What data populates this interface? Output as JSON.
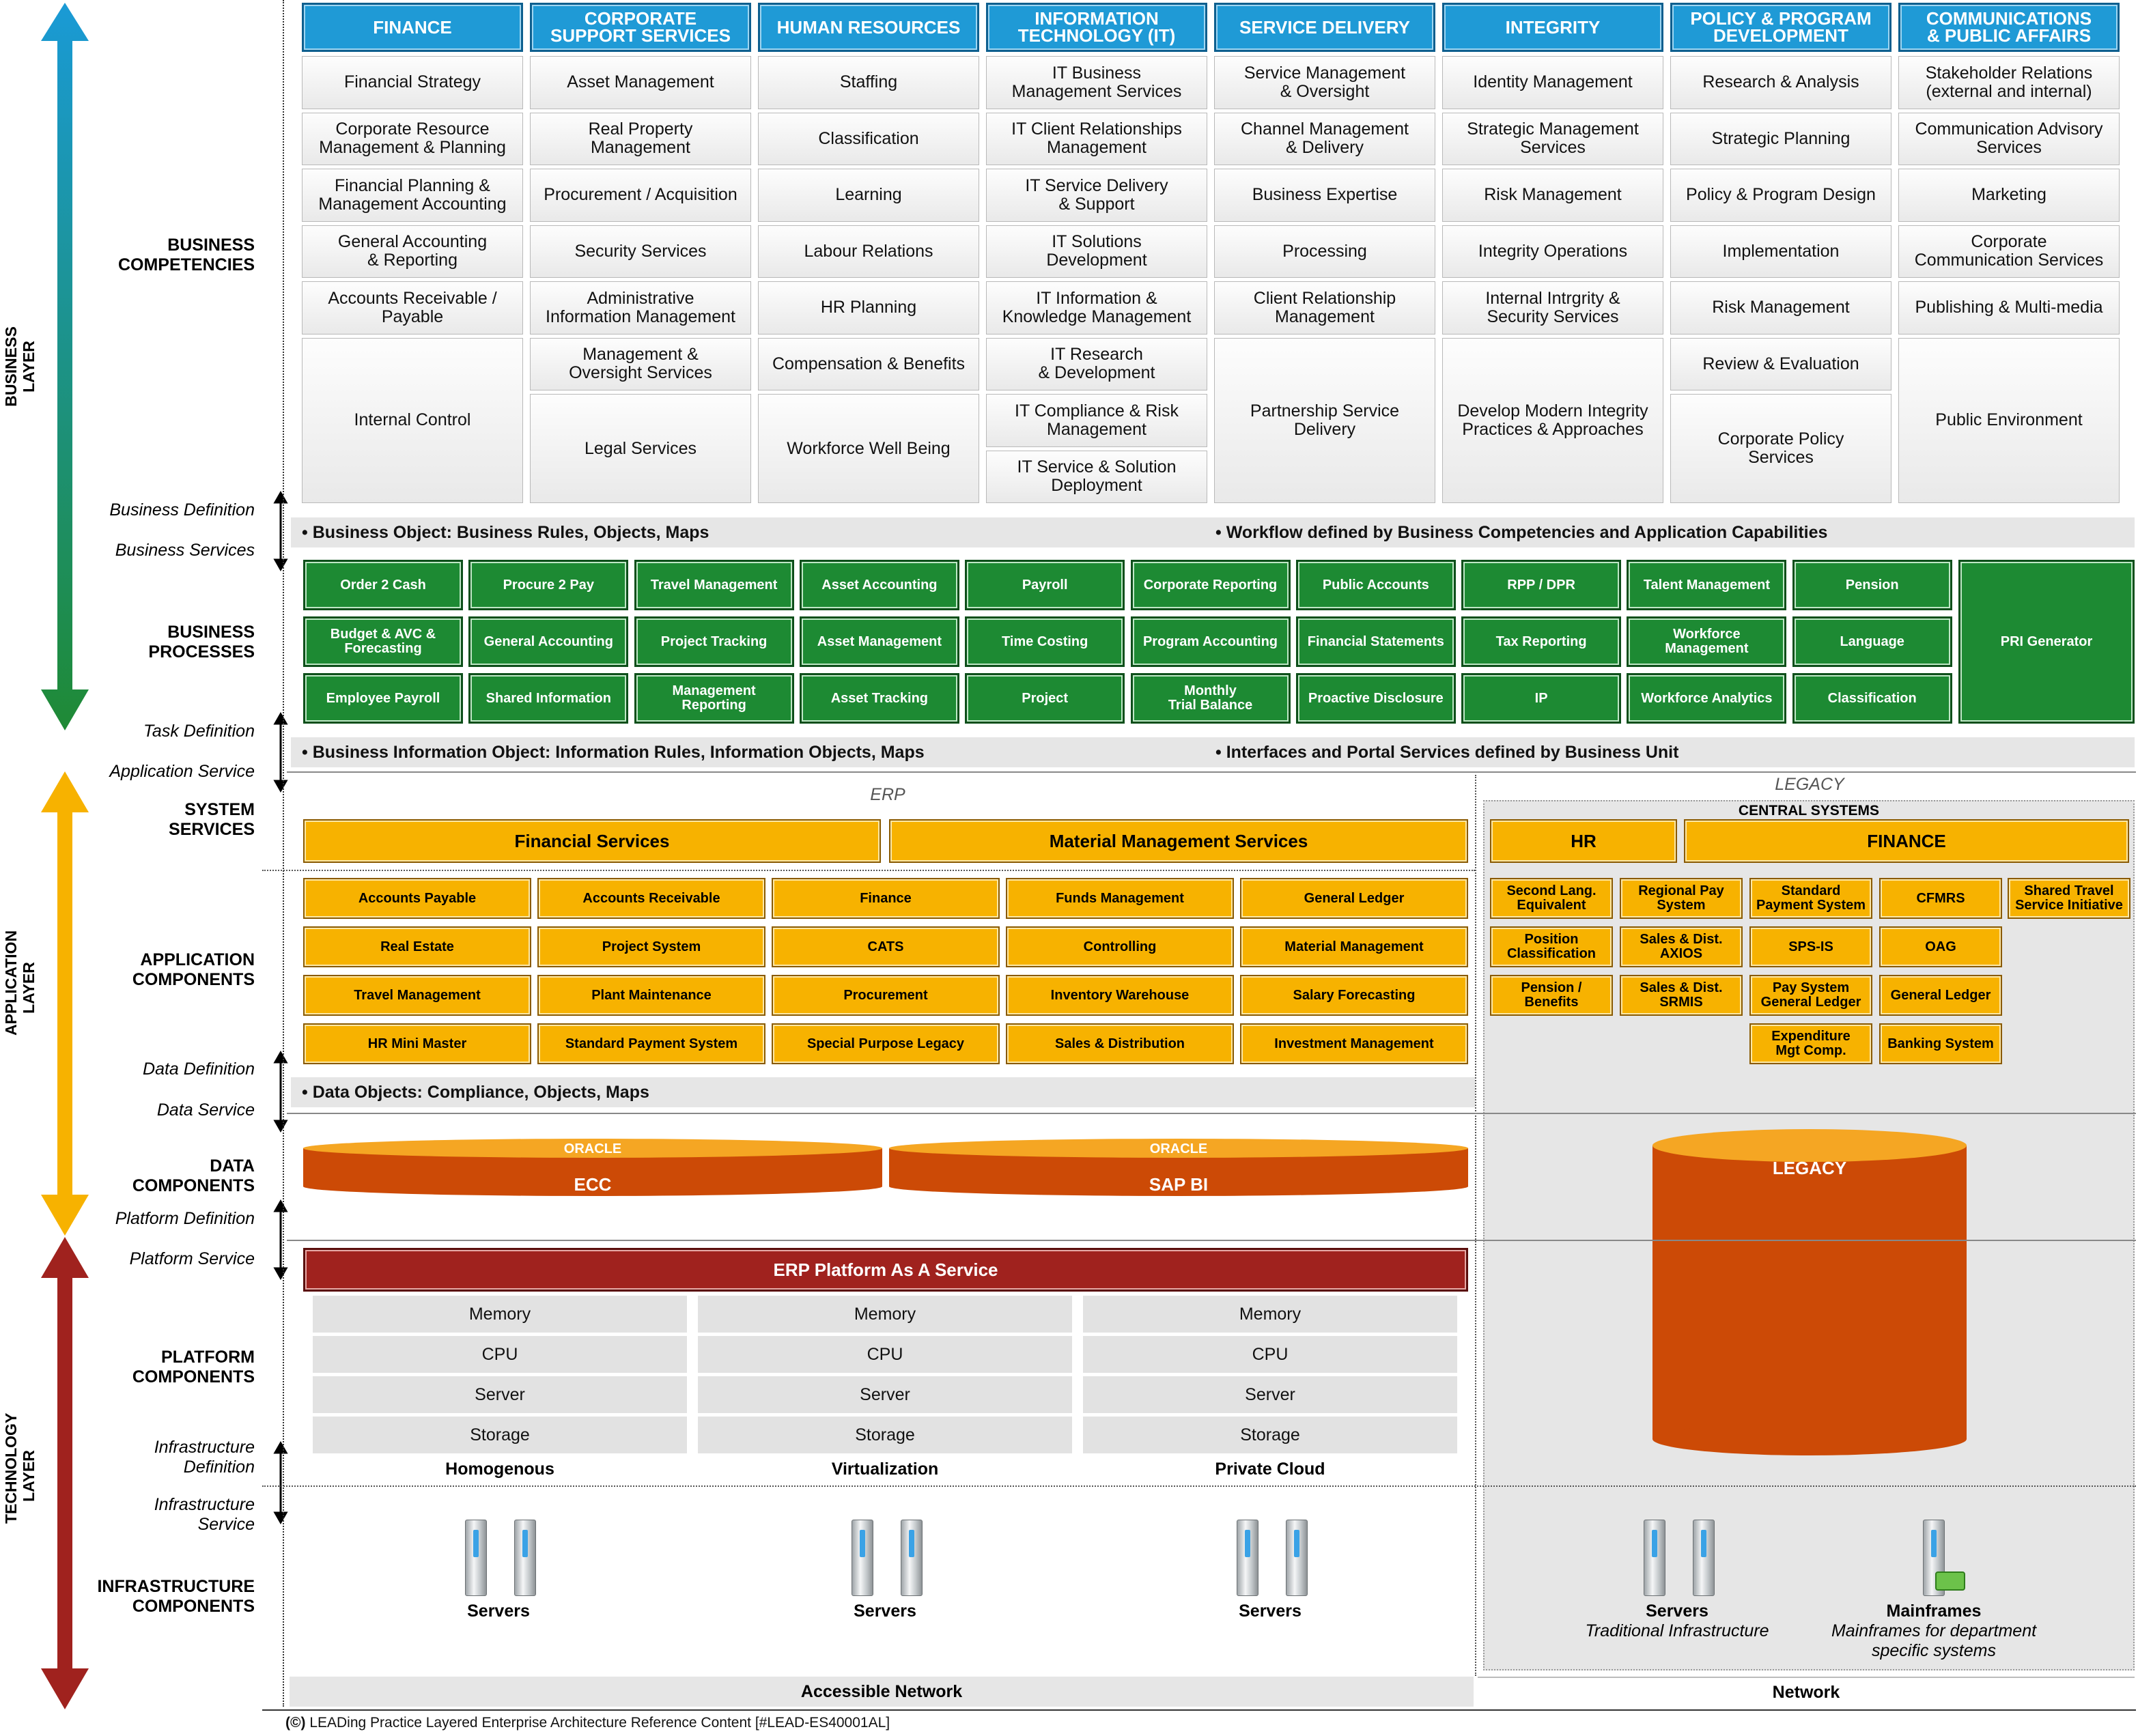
{
  "layers": {
    "business": "BUSINESS\nLAYER",
    "application": "APPLICATION\nLAYER",
    "technology": "TECHNOLOGY\nLAYER",
    "colors": {
      "business_top": "#1a9ad6",
      "business_bottom": "#1f8a35",
      "application": "#f7b200",
      "technology": "#a0221e"
    }
  },
  "left_labels": {
    "business_competencies": "BUSINESS\nCOMPETENCIES",
    "business_processes": "BUSINESS\nPROCESSES",
    "system_services": "SYSTEM\nSERVICES",
    "application_components": "APPLICATION\nCOMPONENTS",
    "data_components": "DATA\nCOMPONENTS",
    "platform_components": "PLATFORM\nCOMPONENTS",
    "infrastructure_components": "INFRASTRUCTURE\nCOMPONENTS"
  },
  "definitions": {
    "business_definition": "Business Definition",
    "business_services": "Business Services",
    "task_definition": "Task Definition",
    "application_service": "Application Service",
    "data_definition": "Data Definition",
    "data_service": "Data Service",
    "platform_definition": "Platform Definition",
    "platform_service": "Platform Service",
    "infrastructure_definition": "Infrastructure\nDefinition",
    "infrastructure_service": "Infrastructure\nService"
  },
  "competency_headers": [
    "FINANCE",
    "CORPORATE\nSUPPORT SERVICES",
    "HUMAN RESOURCES",
    "INFORMATION\nTECHNOLOGY (IT)",
    "SERVICE DELIVERY",
    "INTEGRITY",
    "POLICY & PROGRAM\nDEVELOPMENT",
    "COMMUNICATIONS\n& PUBLIC AFFAIRS"
  ],
  "competencies": {
    "finance": [
      "Financial Strategy",
      "Corporate Resource\nManagement & Planning",
      "Financial Planning &\nManagement Accounting",
      "General Accounting\n& Reporting",
      "Accounts Receivable /\nPayable",
      "Internal Control"
    ],
    "corporate_support": [
      "Asset Management",
      "Real Property\nManagement",
      "Procurement / Acquisition",
      "Security Services",
      "Administrative\nInformation Management",
      "Management &\nOversight Services",
      "Legal Services"
    ],
    "human_resources": [
      "Staffing",
      "Classification",
      "Learning",
      "Labour Relations",
      "HR Planning",
      "Compensation & Benefits",
      "Workforce Well Being"
    ],
    "it": [
      "IT Business\nManagement Services",
      "IT Client Relationships\nManagement",
      "IT Service Delivery\n& Support",
      "IT Solutions\nDevelopment",
      "IT Information &\nKnowledge Management",
      "IT Research\n& Development",
      "IT Compliance & Risk\nManagement",
      "IT Service & Solution\nDeployment"
    ],
    "service_delivery": [
      "Service Management\n& Oversight",
      "Channel Management\n& Delivery",
      "Business Expertise",
      "Processing",
      "Client Relationship\nManagement",
      "Partnership Service\nDelivery"
    ],
    "integrity": [
      "Identity Management",
      "Strategic Management\nServices",
      "Risk Management",
      "Integrity Operations",
      "Internal Intrgrity &\nSecurity Services",
      "Develop Modern Integrity\nPractices & Approaches"
    ],
    "policy": [
      "Research & Analysis",
      "Strategic Planning",
      "Policy & Program Design",
      "Implementation",
      "Risk Management",
      "Review & Evaluation",
      "Corporate Policy\nServices"
    ],
    "communications": [
      "Stakeholder Relations\n(external and internal)",
      "Communication Advisory\nServices",
      "Marketing",
      "Corporate\nCommunication Services",
      "Publishing & Multi-media",
      "Public Environment"
    ]
  },
  "business_band": {
    "left": "• Business Object: Business Rules, Objects, Maps",
    "right": "• Workflow defined by Business Competencies and Application Capabilities"
  },
  "processes": {
    "row1": [
      "Order 2 Cash",
      "Procure 2 Pay",
      "Travel Management",
      "Asset Accounting",
      "Payroll",
      "Corporate Reporting",
      "Public Accounts",
      "RPP / DPR",
      "Talent Management",
      "Pension"
    ],
    "row2": [
      "Budget & AVC &\nForecasting",
      "General Accounting",
      "Project Tracking",
      "Asset Management",
      "Time Costing",
      "Program Accounting",
      "Financial Statements",
      "Tax Reporting",
      "Workforce\nManagement",
      "Language"
    ],
    "row3": [
      "Employee Payroll",
      "Shared Information",
      "Management\nReporting",
      "Asset Tracking",
      "Project",
      "Monthly\nTrial Balance",
      "Proactive Disclosure",
      "IP",
      "Workforce Analytics",
      "Classification"
    ],
    "big": "PRI Generator"
  },
  "application_band": {
    "left": "• Business Information Object: Information Rules, Information Objects, Maps",
    "right": "• Interfaces and Portal Services defined by Business Unit"
  },
  "system_services": {
    "erp_label": "ERP",
    "legacy_label": "LEGACY",
    "central_systems": "CENTRAL SYSTEMS",
    "erp": [
      "Financial Services",
      "Material Management Services"
    ],
    "legacy": [
      "HR",
      "FINANCE"
    ]
  },
  "app_components": {
    "erp": [
      [
        "Accounts Payable",
        "Accounts Receivable",
        "Finance",
        "Funds Management",
        "General Ledger"
      ],
      [
        "Real Estate",
        "Project System",
        "CATS",
        "Controlling",
        "Material Management"
      ],
      [
        "Travel Management",
        "Plant Maintenance",
        "Procurement",
        "Inventory Warehouse",
        "Salary Forecasting"
      ],
      [
        "HR Mini Master",
        "Standard Payment System",
        "Special Purpose Legacy",
        "Sales & Distribution",
        "Investment Management"
      ]
    ],
    "legacy": [
      [
        "Second Lang.\nEquivalent",
        "Regional Pay\nSystem",
        "Standard\nPayment System",
        "CFMRS",
        "Shared Travel\nService Initiative"
      ],
      [
        "Position\nClassification",
        "Sales & Dist.\nAXIOS",
        "SPS-IS",
        "OAG"
      ],
      [
        "Pension /\nBenefits",
        "Sales & Dist.\nSRMIS",
        "Pay System\nGeneral Ledger",
        "General Ledger"
      ],
      [
        "Expenditure\nMgt Comp.",
        "Banking System"
      ]
    ]
  },
  "data_band": {
    "left": "• Data Objects: Compliance, Objects, Maps"
  },
  "data_components": {
    "erp": [
      {
        "top": "ORACLE",
        "name": "ECC"
      },
      {
        "top": "ORACLE",
        "name": "SAP BI"
      }
    ],
    "legacy": "LEGACY"
  },
  "platform": {
    "title": "ERP Platform As A Service",
    "rows": [
      "Memory",
      "CPU",
      "Server",
      "Storage"
    ],
    "columns": [
      "Homogenous",
      "Virtualization",
      "Private Cloud"
    ]
  },
  "infrastructure": {
    "servers": [
      "Servers",
      "Servers",
      "Servers"
    ],
    "legacy_servers": {
      "title": "Servers",
      "subtitle": "Traditional Infrastructure"
    },
    "mainframes": {
      "title": "Mainframes",
      "subtitle": "Mainframes for department\nspecific systems"
    },
    "network_left": "Accessible Network",
    "network_right": "Network"
  },
  "footer": "LEADing Practice Layered Enterprise Architecture Reference Content [#LEAD-ES40001AL]",
  "colors": {
    "header_blue": "#1f9ad6",
    "process_green": "#1d8a33",
    "app_orange": "#f7b200",
    "data_orange": "#cc4a06",
    "platform_red": "#a0221e"
  }
}
